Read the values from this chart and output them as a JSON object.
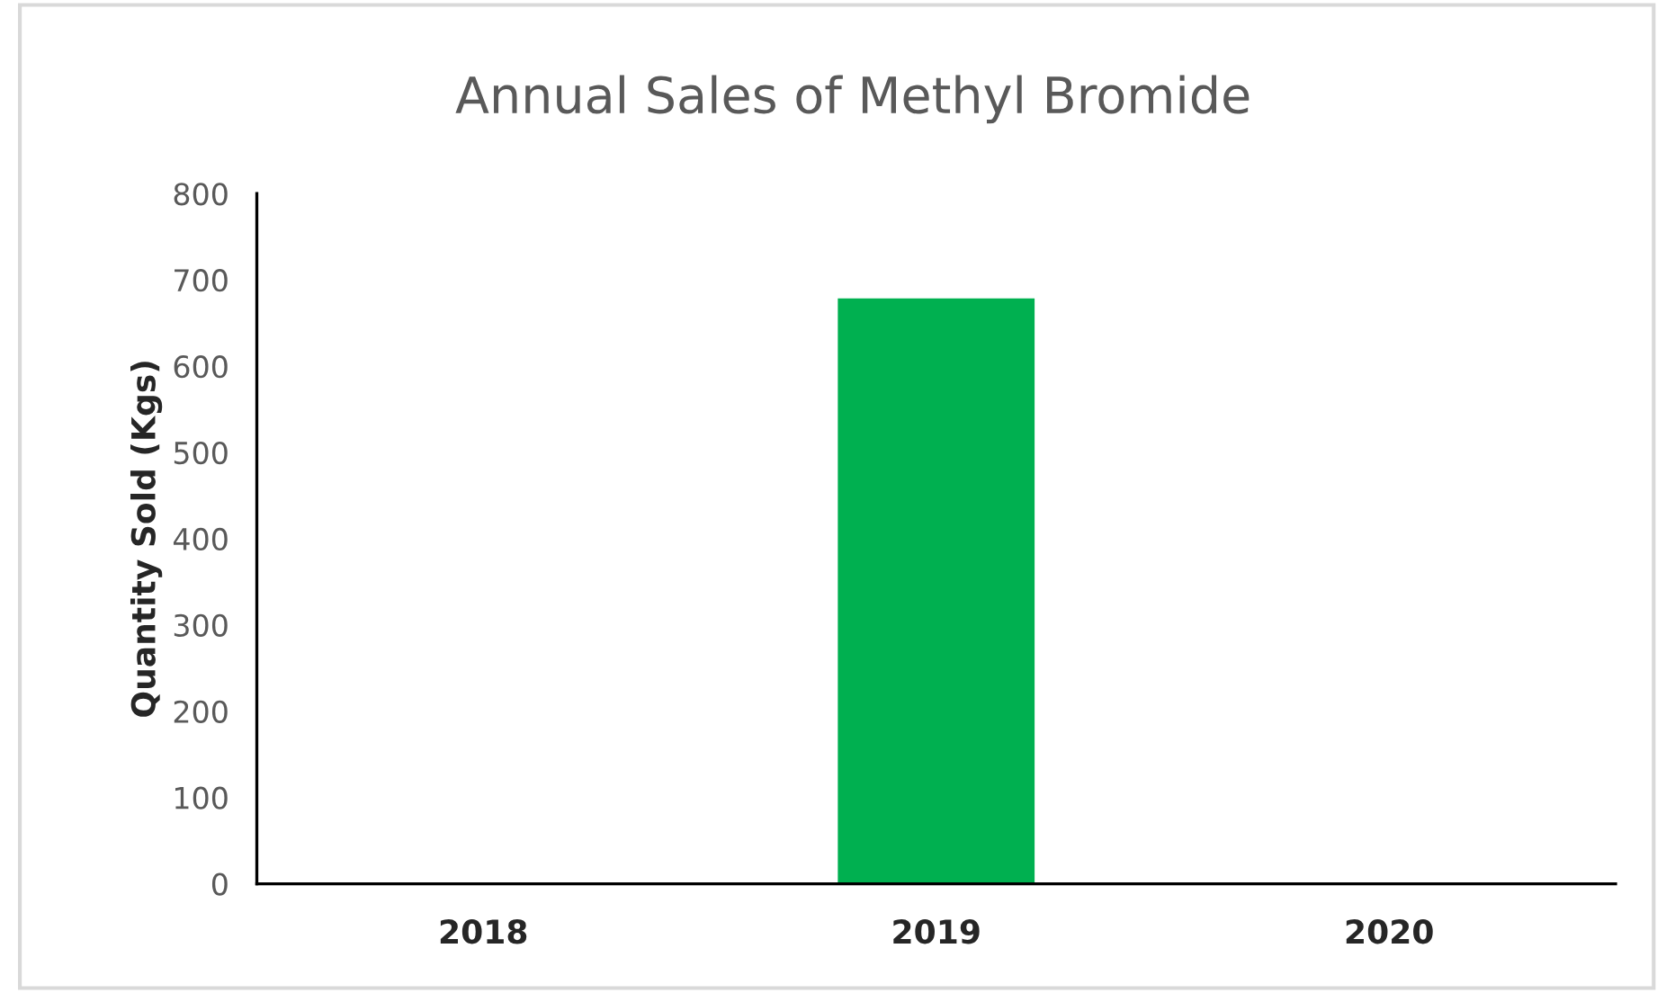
{
  "chart_data": {
    "type": "bar",
    "title": "Annual Sales of Methyl Bromide",
    "ylabel": "Quantity Sold (Kgs)",
    "categories": [
      "2018",
      "2019",
      "2020"
    ],
    "values": [
      null,
      680,
      null
    ],
    "color": "#00b050",
    "ylim": [
      0,
      800
    ],
    "yticks": [
      0,
      100,
      200,
      300,
      400,
      500,
      600,
      700,
      800
    ],
    "grid": false,
    "legend": false
  }
}
